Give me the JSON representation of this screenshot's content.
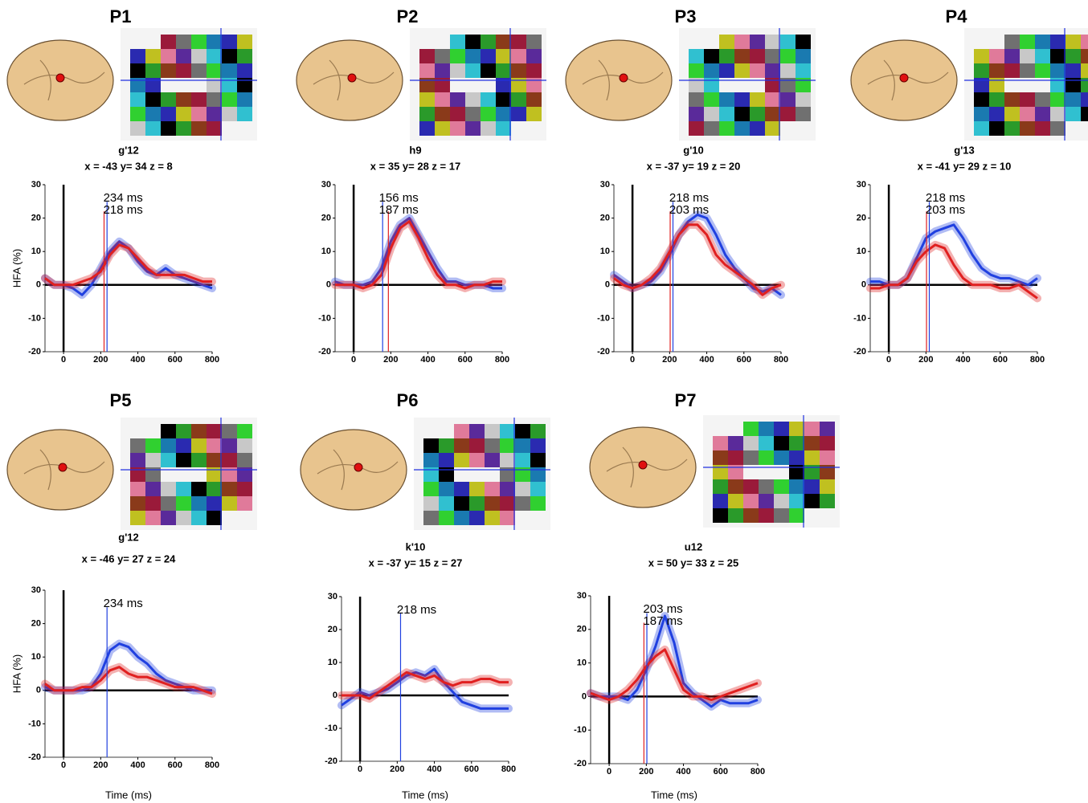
{
  "chart_data": [
    {
      "type": "line",
      "title": "P1",
      "subtitle": "g'12",
      "coordinates": "x = -43 y= 34 z = 8",
      "ylabel": "HFA (%)",
      "x": [
        -100,
        -50,
        0,
        50,
        100,
        150,
        200,
        250,
        300,
        350,
        400,
        450,
        500,
        550,
        600,
        650,
        700,
        750,
        800
      ],
      "series": [
        {
          "color": "#2040e0",
          "values": [
            2,
            0,
            0,
            -1,
            -3,
            0,
            5,
            10,
            13,
            11,
            7,
            4,
            3,
            5,
            3,
            2,
            1,
            0,
            -1
          ]
        },
        {
          "color": "#e02020",
          "values": [
            2,
            0,
            0,
            0,
            1,
            2,
            4,
            9,
            12,
            11,
            8,
            5,
            3,
            3,
            3,
            3,
            2,
            1,
            1
          ]
        }
      ],
      "onsets": [
        {
          "value": 234,
          "label": "234 ms",
          "color": "#2040e0"
        },
        {
          "value": 218,
          "label": "218 ms",
          "color": "#e02020"
        }
      ],
      "xlim": [
        -100,
        800
      ],
      "ylim": [
        -20,
        30
      ],
      "xticks": [
        0,
        200,
        400,
        600,
        800
      ],
      "yticks": [
        -20,
        -10,
        0,
        10,
        20,
        30
      ]
    },
    {
      "type": "line",
      "title": "P2",
      "subtitle": "h9",
      "coordinates": "x = 35 y= 28 z = 17",
      "x": [
        -100,
        -50,
        0,
        50,
        100,
        150,
        200,
        250,
        300,
        350,
        400,
        450,
        500,
        550,
        600,
        650,
        700,
        750,
        800
      ],
      "series": [
        {
          "color": "#2040e0",
          "values": [
            1,
            0,
            0,
            0,
            1,
            5,
            13,
            18,
            20,
            15,
            10,
            5,
            1,
            1,
            0,
            0,
            0,
            -1,
            -1
          ]
        },
        {
          "color": "#e02020",
          "values": [
            0,
            0,
            0,
            -1,
            0,
            3,
            11,
            17,
            19,
            14,
            8,
            3,
            0,
            0,
            -1,
            0,
            0,
            1,
            1
          ]
        }
      ],
      "onsets": [
        {
          "value": 156,
          "label": "156 ms",
          "color": "#2040e0"
        },
        {
          "value": 187,
          "label": "187 ms",
          "color": "#e02020"
        }
      ],
      "xlim": [
        -100,
        800
      ],
      "ylim": [
        -20,
        30
      ],
      "xticks": [
        0,
        200,
        400,
        600,
        800
      ],
      "yticks": [
        -20,
        -10,
        0,
        10,
        20,
        30
      ]
    },
    {
      "type": "line",
      "title": "P3",
      "subtitle": "g'10",
      "coordinates": "x = -37 y= 19 z = 20",
      "x": [
        -100,
        -50,
        0,
        50,
        100,
        150,
        200,
        250,
        300,
        350,
        400,
        450,
        500,
        550,
        600,
        650,
        700,
        750,
        800
      ],
      "series": [
        {
          "color": "#2040e0",
          "values": [
            3,
            1,
            -1,
            0,
            1,
            4,
            9,
            15,
            19,
            21,
            20,
            15,
            9,
            5,
            2,
            -1,
            -2,
            -1,
            -3
          ]
        },
        {
          "color": "#e02020",
          "values": [
            2,
            0,
            -1,
            0,
            2,
            5,
            10,
            15,
            18,
            18,
            15,
            9,
            6,
            4,
            2,
            0,
            -3,
            -1,
            0
          ]
        }
      ],
      "onsets": [
        {
          "value": 218,
          "label": "218 ms",
          "color": "#2040e0"
        },
        {
          "value": 203,
          "label": "203 ms",
          "color": "#e02020"
        }
      ],
      "xlim": [
        -100,
        800
      ],
      "ylim": [
        -20,
        30
      ],
      "xticks": [
        0,
        200,
        400,
        600,
        800
      ],
      "yticks": [
        -20,
        -10,
        0,
        10,
        20,
        30
      ]
    },
    {
      "type": "line",
      "title": "P4",
      "subtitle": "g'13",
      "coordinates": "x = -41 y= 29 z = 10",
      "x": [
        -100,
        -50,
        0,
        50,
        100,
        150,
        200,
        250,
        300,
        350,
        400,
        450,
        500,
        550,
        600,
        650,
        700,
        750,
        800
      ],
      "series": [
        {
          "color": "#2040e0",
          "values": [
            1,
            1,
            0,
            0,
            2,
            8,
            14,
            16,
            17,
            18,
            14,
            9,
            5,
            3,
            2,
            2,
            1,
            0,
            2
          ]
        },
        {
          "color": "#e02020",
          "values": [
            -1,
            -1,
            0,
            0,
            2,
            7,
            10,
            12,
            11,
            6,
            2,
            0,
            0,
            0,
            -1,
            -1,
            0,
            -2,
            -4
          ]
        }
      ],
      "onsets": [
        {
          "value": 218,
          "label": "218 ms",
          "color": "#2040e0"
        },
        {
          "value": 203,
          "label": "203 ms",
          "color": "#e02020"
        }
      ],
      "xlim": [
        -100,
        800
      ],
      "ylim": [
        -20,
        30
      ],
      "xticks": [
        0,
        200,
        400,
        600,
        800
      ],
      "yticks": [
        -20,
        -10,
        0,
        10,
        20,
        30
      ]
    },
    {
      "type": "line",
      "title": "P5",
      "subtitle": "g'12",
      "coordinates": "x = -46 y= 27 z = 24",
      "ylabel": "HFA (%)",
      "xlabel": "Time (ms)",
      "x": [
        -100,
        -50,
        0,
        50,
        100,
        150,
        200,
        250,
        300,
        350,
        400,
        450,
        500,
        550,
        600,
        650,
        700,
        750,
        800
      ],
      "series": [
        {
          "color": "#2040e0",
          "values": [
            1,
            0,
            0,
            0,
            0,
            1,
            5,
            12,
            14,
            13,
            10,
            8,
            5,
            3,
            2,
            1,
            0,
            0,
            0
          ]
        },
        {
          "color": "#e02020",
          "values": [
            2,
            0,
            0,
            0,
            1,
            1,
            3,
            6,
            7,
            5,
            4,
            4,
            3,
            2,
            1,
            1,
            1,
            0,
            -1
          ]
        }
      ],
      "onsets": [
        {
          "value": 234,
          "label": "234 ms",
          "color": "#2040e0"
        }
      ],
      "xlim": [
        -100,
        800
      ],
      "ylim": [
        -20,
        30
      ],
      "xticks": [
        0,
        200,
        400,
        600,
        800
      ],
      "yticks": [
        -20,
        -10,
        0,
        10,
        20,
        30
      ]
    },
    {
      "type": "line",
      "title": "P6",
      "subtitle": "k'10",
      "coordinates": "x = -37 y= 15 z = 27",
      "xlabel": "Time (ms)",
      "x": [
        -100,
        -50,
        0,
        50,
        100,
        150,
        200,
        250,
        300,
        350,
        400,
        450,
        500,
        550,
        600,
        650,
        700,
        750,
        800
      ],
      "series": [
        {
          "color": "#2040e0",
          "values": [
            -3,
            -1,
            1,
            0,
            1,
            2,
            4,
            6,
            7,
            6,
            8,
            4,
            1,
            -2,
            -3,
            -4,
            -4,
            -4,
            -4
          ]
        },
        {
          "color": "#e02020",
          "values": [
            0,
            0,
            0,
            -1,
            1,
            3,
            5,
            7,
            6,
            5,
            6,
            4,
            3,
            4,
            4,
            5,
            5,
            4,
            4
          ]
        }
      ],
      "onsets": [
        {
          "value": 218,
          "label": "218 ms",
          "color": "#2040e0"
        }
      ],
      "xlim": [
        -100,
        800
      ],
      "ylim": [
        -20,
        30
      ],
      "xticks": [
        0,
        200,
        400,
        600,
        800
      ],
      "yticks": [
        -20,
        -10,
        0,
        10,
        20,
        30
      ]
    },
    {
      "type": "line",
      "title": "P7",
      "subtitle": "u12",
      "coordinates": "x = 50 y= 33 z = 25",
      "xlabel": "Time (ms)",
      "x": [
        -100,
        -50,
        0,
        50,
        100,
        150,
        200,
        250,
        300,
        350,
        400,
        450,
        500,
        550,
        600,
        650,
        700,
        750,
        800
      ],
      "series": [
        {
          "color": "#2040e0",
          "values": [
            1,
            0,
            0,
            0,
            -1,
            2,
            8,
            15,
            24,
            16,
            4,
            1,
            -1,
            -3,
            -1,
            -2,
            -2,
            -2,
            -1
          ]
        },
        {
          "color": "#e02020",
          "values": [
            1,
            0,
            -1,
            0,
            2,
            5,
            9,
            12,
            14,
            8,
            2,
            0,
            0,
            -1,
            0,
            1,
            2,
            3,
            4
          ]
        }
      ],
      "onsets": [
        {
          "value": 203,
          "label": "203 ms",
          "color": "#2040e0"
        },
        {
          "value": 187,
          "label": "187 ms",
          "color": "#e02020"
        }
      ],
      "xlim": [
        -100,
        800
      ],
      "ylim": [
        -20,
        30
      ],
      "xticks": [
        0,
        200,
        400,
        600,
        800
      ],
      "yticks": [
        -20,
        -10,
        0,
        10,
        20,
        30
      ]
    }
  ]
}
